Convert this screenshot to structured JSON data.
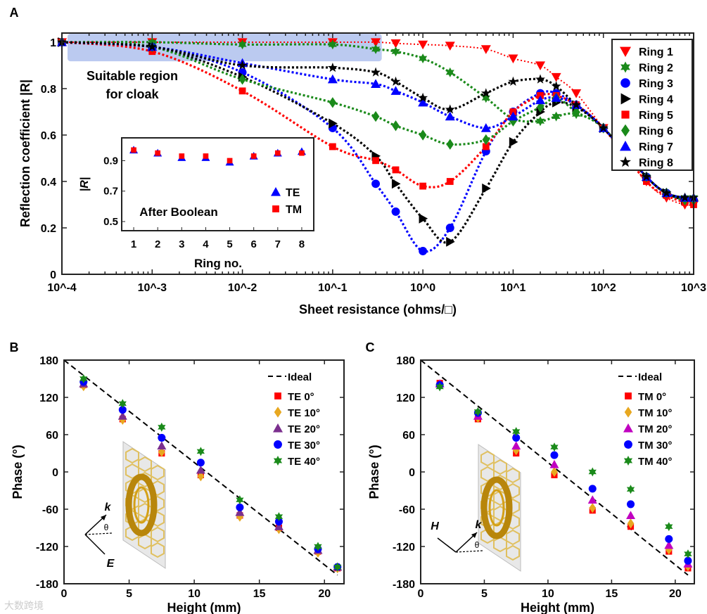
{
  "panel_labels": [
    "A",
    "B",
    "C"
  ],
  "watermark": "大数跨境",
  "chart_data": [
    {
      "type": "line",
      "panel": "A",
      "xlabel": "Sheet resistance (ohms/□)",
      "ylabel": "Reflection coefficient |R|",
      "xscale": "log",
      "xlim": [
        0.0001,
        1000
      ],
      "ylim": [
        0,
        1.04
      ],
      "xtick_labels": [
        "10^-4",
        "10^-3",
        "10^-2",
        "10^-1",
        "10^0",
        "10^1",
        "10^2",
        "10^3"
      ],
      "ytick_labels": [
        "0",
        "0.2",
        "0.4",
        "0.6",
        "0.8",
        "1"
      ],
      "ytick_values": [
        0,
        0.2,
        0.4,
        0.6,
        0.8,
        1
      ],
      "annotation": "Suitable region\nfor cloak",
      "annotation_lines": [
        "Suitable region",
        "for cloak"
      ],
      "highlight_region": {
        "x": [
          0.0001,
          0.35
        ],
        "y": [
          0.93,
          1.03
        ]
      },
      "legend_position": "top-right",
      "x": [
        0.0001,
        0.001,
        0.01,
        0.1,
        0.3,
        0.5,
        1,
        2,
        5,
        10,
        20,
        30,
        50,
        100,
        300,
        500,
        800,
        1000
      ],
      "series": [
        {
          "name": "Ring 1",
          "color": "#ff0000",
          "marker": "triangle-down",
          "values": [
            1,
            1,
            1,
            1,
            1,
            0.995,
            0.99,
            0.985,
            0.97,
            0.93,
            0.9,
            0.85,
            0.78,
            0.63,
            0.4,
            0.33,
            0.3,
            0.3
          ]
        },
        {
          "name": "Ring 2",
          "color": "#1a8a1a",
          "marker": "hexagram",
          "values": [
            1,
            1,
            0.99,
            0.99,
            0.97,
            0.96,
            0.93,
            0.87,
            0.76,
            0.67,
            0.66,
            0.68,
            0.69,
            0.63,
            0.42,
            0.35,
            0.33,
            0.33
          ]
        },
        {
          "name": "Ring 3",
          "color": "#0000ff",
          "marker": "circle",
          "values": [
            1,
            0.98,
            0.87,
            0.63,
            0.39,
            0.27,
            0.1,
            0.2,
            0.53,
            0.7,
            0.78,
            0.78,
            0.73,
            0.63,
            0.42,
            0.35,
            0.32,
            0.32
          ]
        },
        {
          "name": "Ring 4",
          "color": "#000000",
          "marker": "triangle-right",
          "values": [
            1,
            0.98,
            0.85,
            0.65,
            0.51,
            0.39,
            0.24,
            0.14,
            0.37,
            0.57,
            0.7,
            0.74,
            0.72,
            0.63,
            0.42,
            0.35,
            0.32,
            0.32
          ]
        },
        {
          "name": "Ring 5",
          "color": "#ff0000",
          "marker": "square",
          "values": [
            1,
            0.96,
            0.79,
            0.55,
            0.49,
            0.45,
            0.38,
            0.4,
            0.55,
            0.7,
            0.77,
            0.77,
            0.73,
            0.63,
            0.4,
            0.34,
            0.31,
            0.3
          ]
        },
        {
          "name": "Ring 6",
          "color": "#1a8a1a",
          "marker": "diamond",
          "values": [
            1,
            0.98,
            0.84,
            0.74,
            0.68,
            0.64,
            0.6,
            0.56,
            0.58,
            0.66,
            0.72,
            0.76,
            0.7,
            0.63,
            0.42,
            0.35,
            0.32,
            0.32
          ]
        },
        {
          "name": "Ring 7",
          "color": "#0000ff",
          "marker": "triangle-up",
          "values": [
            1,
            0.98,
            0.91,
            0.84,
            0.82,
            0.79,
            0.74,
            0.68,
            0.63,
            0.68,
            0.75,
            0.76,
            0.73,
            0.63,
            0.42,
            0.35,
            0.33,
            0.33
          ]
        },
        {
          "name": "Ring 8",
          "color": "#000000",
          "marker": "star",
          "values": [
            1,
            0.98,
            0.9,
            0.89,
            0.87,
            0.83,
            0.76,
            0.71,
            0.78,
            0.83,
            0.84,
            0.81,
            0.73,
            0.63,
            0.42,
            0.35,
            0.33,
            0.33
          ]
        }
      ],
      "inset": {
        "type": "scatter",
        "xlabel": "Ring no.",
        "ylabel": "|R|",
        "annotation": "After Boolean",
        "xlim": [
          0.5,
          8.5
        ],
        "ylim": [
          0.44,
          1.05
        ],
        "xtick_labels": [
          "1",
          "2",
          "3",
          "4",
          "5",
          "6",
          "7",
          "8"
        ],
        "ytick_labels": [
          "0.5",
          "0.7",
          "0.9"
        ],
        "ytick_values": [
          0.5,
          0.7,
          0.9
        ],
        "x": [
          1,
          2,
          3,
          4,
          5,
          6,
          7,
          8
        ],
        "series": [
          {
            "name": "TE",
            "color": "#0000ff",
            "marker": "triangle-up",
            "values": [
              0.97,
              0.95,
              0.92,
              0.92,
              0.89,
              0.93,
              0.95,
              0.96
            ]
          },
          {
            "name": "TM",
            "color": "#ff0000",
            "marker": "square",
            "values": [
              0.97,
              0.95,
              0.93,
              0.93,
              0.9,
              0.93,
              0.95,
              0.95
            ]
          }
        ]
      }
    },
    {
      "type": "scatter",
      "panel": "B",
      "xlabel": "Height (mm)",
      "ylabel": "Phase (°)",
      "xlim": [
        0,
        21.5
      ],
      "ylim": [
        -180,
        180
      ],
      "xtick_labels": [
        "0",
        "5",
        "10",
        "15",
        "20"
      ],
      "xtick_values": [
        0,
        5,
        10,
        15,
        20
      ],
      "ytick_labels": [
        "180",
        "120",
        "60",
        "0",
        "-60",
        "-120",
        "-180"
      ],
      "ytick_values": [
        180,
        120,
        60,
        0,
        -60,
        -120,
        -180
      ],
      "legend_position": "top-right",
      "ideal": {
        "name": "Ideal",
        "x": [
          0,
          21
        ],
        "values": [
          180,
          -166
        ]
      },
      "diagram_labels": {
        "k": "k",
        "theta": "θ",
        "field": "E"
      },
      "x": [
        1.5,
        4.5,
        7.5,
        10.5,
        13.5,
        16.5,
        19.5,
        21
      ],
      "series": [
        {
          "name": "TE 0°",
          "color": "#ff0000",
          "marker": "square",
          "values": [
            140,
            85,
            30,
            -5,
            -70,
            -90,
            -128,
            -155
          ]
        },
        {
          "name": "TE 10°",
          "color": "#e8a820",
          "marker": "diamond",
          "values": [
            138,
            84,
            32,
            -7,
            -72,
            -92,
            -130,
            -155
          ]
        },
        {
          "name": "TE 20°",
          "color": "#7b2f8e",
          "marker": "triangle-up",
          "values": [
            142,
            90,
            42,
            3,
            -65,
            -88,
            -126,
            -153
          ]
        },
        {
          "name": "TE 30°",
          "color": "#0000ff",
          "marker": "circle",
          "values": [
            145,
            100,
            55,
            15,
            -57,
            -80,
            -124,
            -153
          ]
        },
        {
          "name": "TE 40°",
          "color": "#1a8a1a",
          "marker": "hexagram",
          "values": [
            150,
            110,
            72,
            33,
            -45,
            -72,
            -120,
            -153
          ]
        }
      ]
    },
    {
      "type": "scatter",
      "panel": "C",
      "xlabel": "Height (mm)",
      "ylabel": "Phase (°)",
      "xlim": [
        0,
        21.5
      ],
      "ylim": [
        -180,
        180
      ],
      "xtick_labels": [
        "0",
        "5",
        "10",
        "15",
        "20"
      ],
      "xtick_values": [
        0,
        5,
        10,
        15,
        20
      ],
      "ytick_labels": [
        "180",
        "120",
        "60",
        "0",
        "-60",
        "-120",
        "-180"
      ],
      "ytick_values": [
        180,
        120,
        60,
        0,
        -60,
        -120,
        -180
      ],
      "legend_position": "top-right",
      "ideal": {
        "name": "Ideal",
        "x": [
          0,
          21
        ],
        "values": [
          180,
          -166
        ]
      },
      "diagram_labels": {
        "k": "k",
        "theta": "θ",
        "field": "H"
      },
      "x": [
        1.5,
        4.5,
        7.5,
        10.5,
        13.5,
        16.5,
        19.5,
        21
      ],
      "series": [
        {
          "name": "TM 0°",
          "color": "#ff0000",
          "marker": "square",
          "values": [
            143,
            85,
            30,
            -5,
            -62,
            -88,
            -128,
            -155
          ]
        },
        {
          "name": "TM 10°",
          "color": "#e8a820",
          "marker": "diamond",
          "values": [
            140,
            87,
            35,
            0,
            -58,
            -83,
            -125,
            -152
          ]
        },
        {
          "name": "TM 20°",
          "color": "#c000c0",
          "marker": "triangle-up",
          "values": [
            142,
            90,
            42,
            12,
            -45,
            -70,
            -118,
            -148
          ]
        },
        {
          "name": "TM 30°",
          "color": "#0000ff",
          "marker": "circle",
          "values": [
            140,
            95,
            55,
            27,
            -27,
            -52,
            -108,
            -143
          ]
        },
        {
          "name": "TM 40°",
          "color": "#1a8a1a",
          "marker": "hexagram",
          "values": [
            137,
            97,
            65,
            40,
            0,
            -28,
            -88,
            -132
          ]
        }
      ]
    }
  ]
}
